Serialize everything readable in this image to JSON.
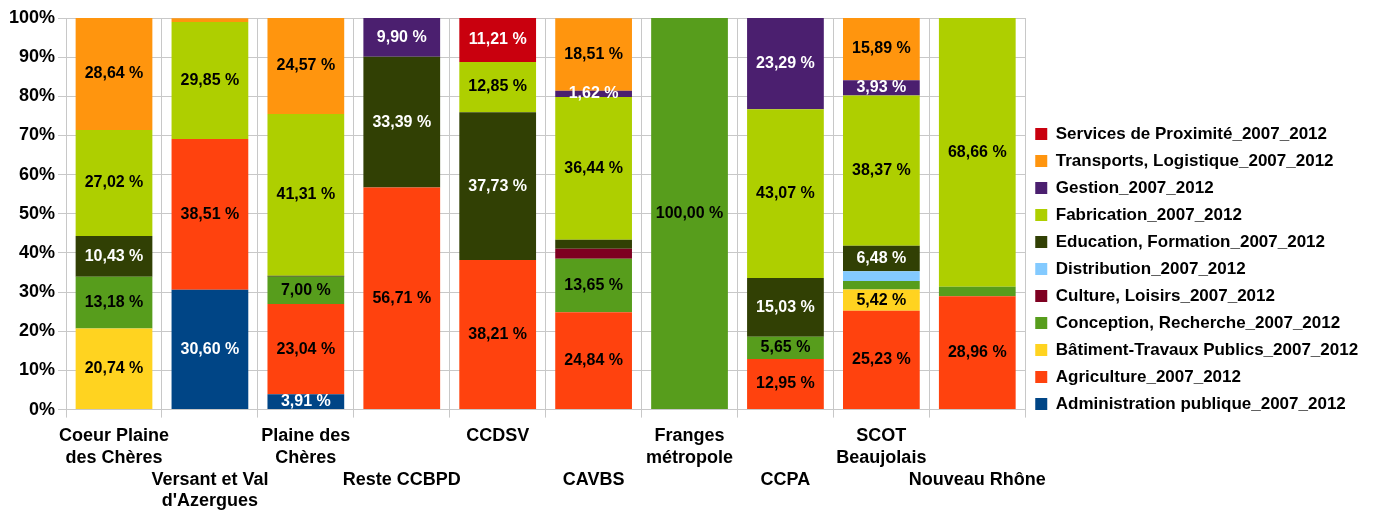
{
  "chart_data": {
    "type": "bar",
    "stacked": true,
    "grid": true,
    "legend": "right",
    "ylim": [
      0,
      100
    ],
    "yticks": [
      {
        "value": 0,
        "label": "0%"
      },
      {
        "value": 10,
        "label": "10%"
      },
      {
        "value": 20,
        "label": "20%"
      },
      {
        "value": 30,
        "label": "30%"
      },
      {
        "value": 40,
        "label": "40%"
      },
      {
        "value": 50,
        "label": "50%"
      },
      {
        "value": 60,
        "label": "60%"
      },
      {
        "value": 70,
        "label": "70%"
      },
      {
        "value": 80,
        "label": "80%"
      },
      {
        "value": 90,
        "label": "90%"
      },
      {
        "value": 100,
        "label": "100%"
      }
    ],
    "categories": [
      "Coeur Plaine des Chères",
      "Versant et Val d'Azergues",
      "Plaine des Chères",
      "Reste CCBPD",
      "CCDSV",
      "CAVBS",
      "Franges métropole",
      "CCPA",
      "SCOT Beaujolais",
      "Nouveau Rhône"
    ],
    "series": [
      {
        "name": "Administration publique_2007_2012",
        "color": "#004586",
        "values": [
          null,
          30.6,
          3.91,
          null,
          null,
          null,
          null,
          null,
          null,
          null
        ],
        "value_labels": [
          null,
          "30,60 %",
          "3,91 %",
          null,
          null,
          null,
          null,
          null,
          null,
          null
        ]
      },
      {
        "name": "Agriculture_2007_2012",
        "color": "#ff420e",
        "values": [
          null,
          38.51,
          23.04,
          56.71,
          38.21,
          24.84,
          null,
          12.95,
          25.23,
          28.96
        ],
        "value_labels": [
          null,
          "38,51 %",
          "23,04 %",
          "56,71 %",
          "38,21 %",
          "24,84 %",
          null,
          "12,95 %",
          "25,23 %",
          "28,96 %"
        ]
      },
      {
        "name": "Bâtiment-Travaux Publics_2007_2012",
        "color": "#ffd320",
        "values": [
          20.74,
          null,
          null,
          null,
          null,
          null,
          null,
          null,
          5.42,
          null
        ],
        "value_labels": [
          "20,74 %",
          null,
          null,
          null,
          null,
          null,
          null,
          null,
          "5,42 %",
          null
        ]
      },
      {
        "name": "Conception, Recherche_2007_2012",
        "color": "#579d1c",
        "values": [
          13.18,
          null,
          7.0,
          null,
          null,
          13.65,
          100.0,
          5.65,
          2.2,
          2.4
        ],
        "value_labels": [
          "13,18 %",
          null,
          "7,00 %",
          null,
          null,
          "13,65 %",
          "100,00 %",
          "5,65 %",
          null,
          null
        ]
      },
      {
        "name": "Culture, Loisirs_2007_2012",
        "color": "#7e0021",
        "values": [
          null,
          null,
          null,
          null,
          null,
          2.6,
          null,
          null,
          null,
          null
        ],
        "value_labels": [
          null,
          null,
          null,
          null,
          null,
          null,
          null,
          null,
          null,
          null
        ]
      },
      {
        "name": "Distribution_2007_2012",
        "color": "#83caff",
        "values": [
          null,
          null,
          null,
          null,
          null,
          null,
          null,
          null,
          2.5,
          null
        ],
        "value_labels": [
          null,
          null,
          null,
          null,
          null,
          null,
          null,
          null,
          null,
          null
        ]
      },
      {
        "name": "Education, Formation_2007_2012",
        "color": "#314004",
        "values": [
          10.43,
          null,
          0.2,
          33.39,
          37.73,
          2.3,
          null,
          15.03,
          6.48,
          null
        ],
        "value_labels": [
          "10,43 %",
          null,
          null,
          "33,39 %",
          "37,73 %",
          null,
          null,
          "15,03 %",
          "6,48 %",
          null
        ]
      },
      {
        "name": "Fabrication_2007_2012",
        "color": "#aecf00",
        "values": [
          27.02,
          29.85,
          41.31,
          null,
          12.85,
          36.44,
          null,
          43.07,
          38.37,
          68.66
        ],
        "value_labels": [
          "27,02 %",
          "29,85 %",
          "41,31 %",
          null,
          "12,85 %",
          "36,44 %",
          null,
          "43,07 %",
          "38,37 %",
          "68,66 %"
        ]
      },
      {
        "name": "Gestion_2007_2012",
        "color": "#4b1f6f",
        "values": [
          null,
          null,
          null,
          9.9,
          null,
          1.62,
          null,
          23.29,
          3.93,
          null
        ],
        "value_labels": [
          null,
          null,
          null,
          "9,90 %",
          null,
          "1,62 %",
          null,
          "23,29 %",
          "3,93 %",
          null
        ]
      },
      {
        "name": "Transports, Logistique_2007_2012",
        "color": "#ff950e",
        "values": [
          28.64,
          1.0,
          24.57,
          null,
          null,
          18.51,
          null,
          null,
          15.89,
          null
        ],
        "value_labels": [
          "28,64 %",
          null,
          "24,57 %",
          null,
          null,
          "18,51 %",
          null,
          null,
          "15,89 %",
          null
        ]
      },
      {
        "name": "Services de Proximité_2007_2012",
        "color": "#c9000e",
        "values": [
          null,
          null,
          null,
          null,
          11.21,
          null,
          null,
          null,
          null,
          null
        ],
        "value_labels": [
          null,
          null,
          null,
          null,
          "11,21 %",
          null,
          null,
          null,
          null,
          null
        ]
      }
    ]
  }
}
